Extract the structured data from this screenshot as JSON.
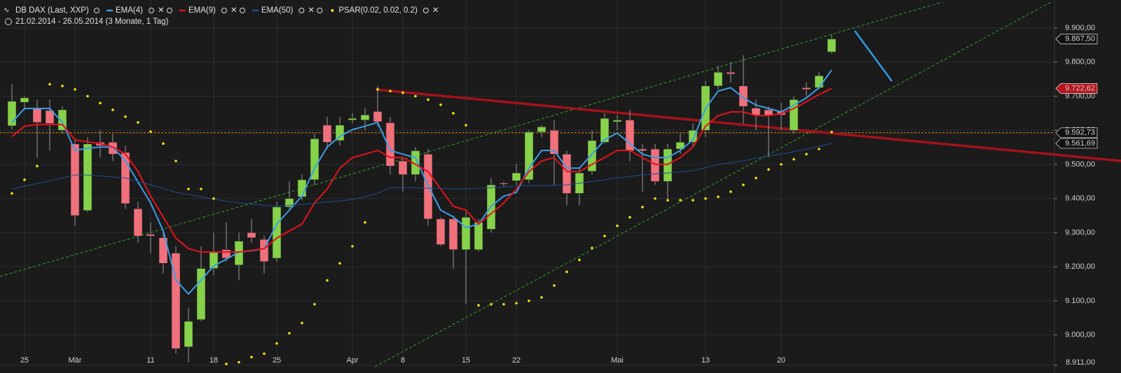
{
  "chart_data": {
    "type": "candlestick",
    "title": "DB DAX (Last, XXP)",
    "subtitle": "21.02.2014 - 26.05.2014 (3 Monate, 1 Tag)",
    "categories": [
      null,
      "25",
      null,
      null,
      null,
      "Mär",
      null,
      null,
      null,
      null,
      null,
      "11",
      null,
      null,
      null,
      null,
      "18",
      null,
      null,
      null,
      null,
      "25",
      null,
      null,
      null,
      null,
      null,
      "Apr",
      null,
      null,
      null,
      "8",
      null,
      null,
      null,
      null,
      "15",
      null,
      null,
      null,
      "22",
      null,
      null,
      null,
      null,
      null,
      null,
      null,
      "Mai",
      null,
      null,
      null,
      null,
      null,
      null,
      "13",
      null,
      null,
      null,
      null,
      null,
      "20",
      null,
      null,
      null,
      null
    ],
    "open": [
      9613,
      9682,
      9665,
      9658,
      9600,
      9560,
      9365,
      9565,
      9565,
      9535,
      9370,
      9295,
      9285,
      9240,
      8965,
      9045,
      9195,
      9250,
      9205,
      9300,
      9280,
      9225,
      9375,
      9405,
      9455,
      9615,
      9570,
      9630,
      9630,
      9655,
      9622,
      9510,
      9470,
      9530,
      9340,
      9340,
      9250,
      9250,
      9310,
      9445,
      9452,
      9455,
      9595,
      9600,
      9530,
      9415,
      9480,
      9565,
      9625,
      9630,
      9545,
      9545,
      9450,
      9545,
      9565,
      9600,
      9730,
      9770,
      9730,
      9665,
      9660,
      9655,
      9600,
      9725,
      9725,
      9830
    ],
    "high": [
      9735,
      9700,
      9690,
      9690,
      9670,
      9575,
      9580,
      9600,
      9590,
      9555,
      9390,
      9330,
      9300,
      9260,
      9080,
      9260,
      9300,
      9330,
      9300,
      9340,
      9290,
      9390,
      9450,
      9470,
      9590,
      9640,
      9640,
      9650,
      9665,
      9730,
      9640,
      9520,
      9550,
      9545,
      9345,
      9350,
      9360,
      9340,
      9460,
      9450,
      9500,
      9600,
      9615,
      9630,
      9540,
      9490,
      9600,
      9650,
      9645,
      9660,
      9560,
      9560,
      9560,
      9590,
      9620,
      9745,
      9790,
      9800,
      9820,
      9690,
      9670,
      9680,
      9700,
      9740,
      9770,
      9880
    ],
    "low": [
      9603,
      9660,
      9520,
      9540,
      9590,
      9320,
      9360,
      9520,
      9510,
      9370,
      9270,
      9240,
      9180,
      8945,
      8920,
      9040,
      9175,
      9215,
      9160,
      9270,
      9180,
      9215,
      9370,
      9395,
      9440,
      9545,
      9555,
      9620,
      9600,
      9610,
      9470,
      9420,
      9450,
      9320,
      9260,
      9195,
      9090,
      9245,
      9300,
      9435,
      9440,
      9445,
      9580,
      9440,
      9380,
      9380,
      9470,
      9560,
      9600,
      9510,
      9420,
      9440,
      9400,
      9530,
      9555,
      9580,
      9720,
      9740,
      9620,
      9600,
      9520,
      9600,
      9590,
      9700,
      9720,
      9825
    ],
    "close": [
      9685,
      9695,
      9623,
      9620,
      9660,
      9350,
      9560,
      9555,
      9530,
      9385,
      9290,
      9290,
      9210,
      8960,
      9040,
      9195,
      9245,
      9225,
      9275,
      9285,
      9215,
      9375,
      9400,
      9455,
      9575,
      9565,
      9615,
      9635,
      9645,
      9625,
      9495,
      9470,
      9540,
      9340,
      9265,
      9250,
      9345,
      9330,
      9440,
      9443,
      9475,
      9595,
      9610,
      9530,
      9415,
      9475,
      9570,
      9635,
      9630,
      9540,
      9540,
      9450,
      9545,
      9565,
      9600,
      9730,
      9770,
      9765,
      9670,
      9645,
      9645,
      9645,
      9690,
      9720,
      9760,
      9867.5
    ],
    "up_color": "#86d24a",
    "down_color": "#f0707c",
    "series": [
      {
        "name": "EMA(4)",
        "color": "#3b9ee8",
        "values": [
          9623,
          9664,
          9664,
          9664,
          9623,
          9541,
          9547,
          9551,
          9551,
          9510,
          9448,
          9387,
          9305,
          9161,
          9120,
          9161,
          9202,
          9222,
          9243,
          9247,
          9253,
          9325,
          9366,
          9407,
          9489,
          9551,
          9582,
          9602,
          9612,
          9623,
          9541,
          9530,
          9520,
          9438,
          9366,
          9346,
          9315,
          9325,
          9377,
          9407,
          9418,
          9489,
          9541,
          9541,
          9489,
          9489,
          9530,
          9572,
          9592,
          9561,
          9530,
          9520,
          9520,
          9541,
          9572,
          9664,
          9715,
          9725,
          9695,
          9674,
          9664,
          9654,
          9674,
          9695,
          9725,
          9777
        ]
      },
      {
        "name": "EMA(9)",
        "color": "#e3121c",
        "values": [
          9582,
          9612,
          9617,
          9617,
          9617,
          9572,
          9566,
          9561,
          9551,
          9530,
          9479,
          9407,
          9346,
          9284,
          9253,
          9243,
          9243,
          9243,
          9243,
          9248,
          9253,
          9284,
          9305,
          9325,
          9387,
          9428,
          9489,
          9520,
          9530,
          9541,
          9520,
          9520,
          9500,
          9479,
          9428,
          9377,
          9366,
          9325,
          9356,
          9387,
          9428,
          9479,
          9510,
          9520,
          9479,
          9479,
          9500,
          9520,
          9541,
          9541,
          9520,
          9500,
          9500,
          9520,
          9551,
          9612,
          9643,
          9654,
          9654,
          9643,
          9643,
          9649,
          9664,
          9684,
          9705,
          9722.62
        ]
      },
      {
        "name": "EMA(50)",
        "color": "#1e4f90",
        "values": [
          9428,
          9436,
          9444,
          9452,
          9460,
          9469,
          9469,
          9466,
          9463,
          9460,
          9450,
          9440,
          9430,
          9418,
          9412,
          9405,
          9398,
          9392,
          9387,
          9384,
          9380,
          9377,
          9380,
          9383,
          9386,
          9390,
          9393,
          9397,
          9405,
          9415,
          9432,
          9432,
          9432,
          9430,
          9430,
          9428,
          9428,
          9430,
          9432,
          9434,
          9436,
          9438,
          9438,
          9438,
          9440,
          9445,
          9450,
          9455,
          9460,
          9465,
          9469,
          9472,
          9475,
          9478,
          9482,
          9490,
          9500,
          9505,
          9510,
          9518,
          9525,
          9530,
          9537,
          9545,
          9553,
          9561.69
        ]
      },
      {
        "name": "PSAR(0.02, 0.02, 0.2)",
        "color": "#f2e21a",
        "style": "dots",
        "values": [
          9415,
          9455,
          9495,
          9735,
          9730,
          9720,
          9700,
          9680,
          9660,
          9640,
          9623,
          9596,
          9561,
          9510,
          9428,
          9428,
          9400,
          8915,
          8920,
          8935,
          8945,
          8975,
          9005,
          9035,
          9090,
          9160,
          9210,
          9260,
          9330,
          9720,
          9715,
          9710,
          9700,
          9690,
          9675,
          9650,
          9615,
          9087,
          9090,
          9090,
          9093,
          9100,
          9110,
          9145,
          9185,
          9220,
          9255,
          9290,
          9320,
          9345,
          9375,
          9400,
          9395,
          9395,
          9395,
          9400,
          9405,
          9420,
          9440,
          9460,
          9485,
          9500,
          9515,
          9530,
          9545,
          9595
        ]
      }
    ],
    "ylim": [
      8911,
      9982
    ],
    "yticks": [
      {
        "value": 9900,
        "label": "9.900,00"
      },
      {
        "value": 9800,
        "label": "9.800,00"
      },
      {
        "value": 9700,
        "label": "9.700,00"
      },
      {
        "value": 9600,
        "label": "9.600,00"
      },
      {
        "value": 9500,
        "label": "9.500,00"
      },
      {
        "value": 9400,
        "label": "9.400,00"
      },
      {
        "value": 9300,
        "label": "9.300,00"
      },
      {
        "value": 9200,
        "label": "9.200,00"
      },
      {
        "value": 9100,
        "label": "9.100,00"
      },
      {
        "value": 9000,
        "label": "9.000,00"
      },
      {
        "value": 8911,
        "label": "8.911,00"
      }
    ],
    "price_markers": [
      {
        "value": 9867.5,
        "label": "9.867,50",
        "color": "#111111"
      },
      {
        "value": 9722.62,
        "label": "9.722,62",
        "color": "#b5121b"
      },
      {
        "value": 9592.73,
        "label": "9.592,73",
        "color": "#111111",
        "line_color": "#e08a1e"
      },
      {
        "value": 9561.69,
        "label": "9.561,69",
        "color": "#111111"
      }
    ],
    "grid": true
  }
}
